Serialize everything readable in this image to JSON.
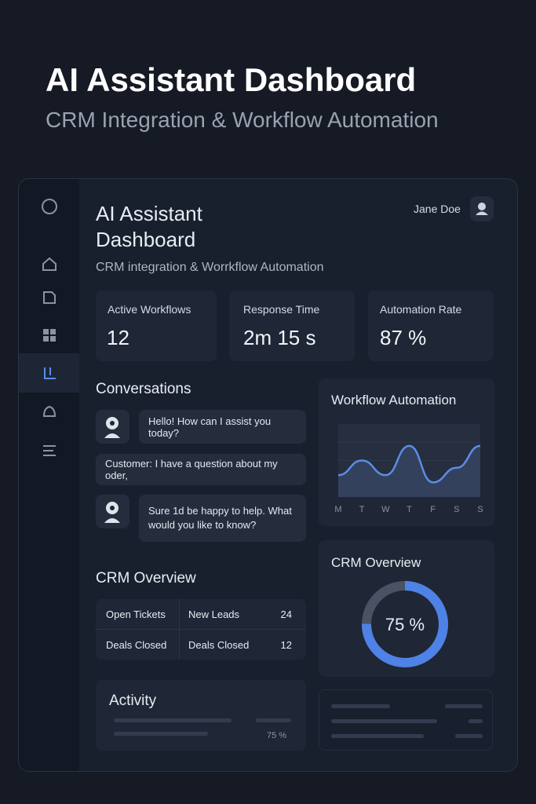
{
  "header": {
    "title": "AI Assistant Dashboard",
    "subtitle": "CRM Integration & Workflow Automation"
  },
  "panel": {
    "title": "AI Assistant Dashboard",
    "subtitle": "CRM integration & Worrkflow Automation",
    "user": "Jane Doe"
  },
  "stats": [
    {
      "label": "Active Workflows",
      "value": "12"
    },
    {
      "label": "Response Time",
      "value": "2m 15 s"
    },
    {
      "label": "Automation Rate",
      "value": "87 %"
    }
  ],
  "conversations": {
    "title": "Conversations",
    "messages": [
      "Hello! How can I assist you today?",
      "Customer: I have a question about my oder,",
      "Sure  1d be happy to help. What would you like to know?"
    ]
  },
  "workflow_chart": {
    "type": "line",
    "title": "Workflow Automation",
    "categories": [
      "M",
      "T",
      "W",
      "T",
      "F",
      "S",
      "S"
    ],
    "values": [
      3,
      5,
      3,
      7,
      2,
      4,
      7
    ],
    "ylim": [
      0,
      10
    ],
    "color": "#5b8de8"
  },
  "crm_table": {
    "title": "CRM Overview",
    "rows": [
      [
        "Open Tickets",
        "New Leads",
        "24"
      ],
      [
        "Deals Closed",
        "Deals Closed",
        "12"
      ]
    ]
  },
  "donut": {
    "title": "CRM Overview",
    "value": 75,
    "label": "75 %",
    "color": "#4f82e6"
  },
  "activity": {
    "title": "Activity",
    "label": "75 %"
  }
}
